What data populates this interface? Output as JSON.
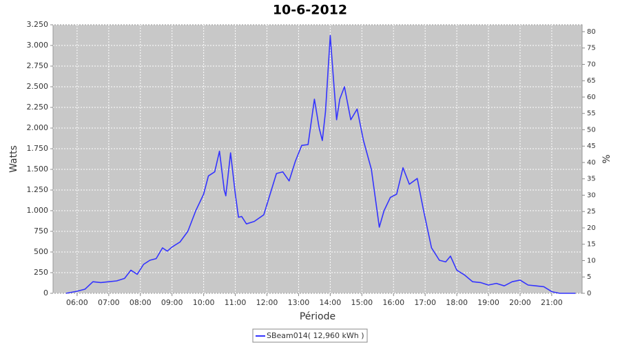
{
  "chart_data": {
    "type": "line",
    "title": "10-6-2012",
    "x_label": "Période",
    "y_label": "Watts",
    "y2_label": "%",
    "x": [
      5.65,
      6.0,
      6.25,
      6.5,
      6.75,
      7.0,
      7.25,
      7.5,
      7.7,
      7.9,
      8.1,
      8.3,
      8.5,
      8.7,
      8.85,
      9.0,
      9.25,
      9.5,
      9.75,
      10.0,
      10.15,
      10.35,
      10.5,
      10.65,
      10.7,
      10.85,
      11.0,
      11.1,
      11.2,
      11.35,
      11.6,
      11.9,
      12.1,
      12.3,
      12.5,
      12.7,
      12.9,
      13.1,
      13.3,
      13.5,
      13.65,
      13.75,
      13.85,
      14.0,
      14.1,
      14.2,
      14.3,
      14.45,
      14.65,
      14.85,
      15.05,
      15.3,
      15.55,
      15.7,
      15.9,
      16.1,
      16.3,
      16.5,
      16.75,
      16.95,
      17.2,
      17.45,
      17.65,
      17.8,
      18.0,
      18.25,
      18.5,
      18.75,
      19.0,
      19.25,
      19.5,
      19.75,
      20.0,
      20.25,
      20.5,
      20.75,
      21.0,
      21.25,
      21.75
    ],
    "series": [
      {
        "name": "SBeam014( 12,960 kWh )",
        "color": "#3333ff",
        "values": [
          0,
          25,
          50,
          140,
          130,
          140,
          150,
          180,
          280,
          230,
          350,
          400,
          420,
          550,
          510,
          560,
          620,
          750,
          1000,
          1200,
          1420,
          1470,
          1720,
          1250,
          1180,
          1700,
          1200,
          920,
          930,
          840,
          870,
          950,
          1200,
          1450,
          1470,
          1360,
          1600,
          1790,
          1800,
          2350,
          2000,
          1850,
          2200,
          3120,
          2600,
          2100,
          2350,
          2500,
          2100,
          2230,
          1850,
          1500,
          800,
          1000,
          1160,
          1200,
          1520,
          1320,
          1390,
          1000,
          550,
          400,
          380,
          450,
          280,
          220,
          140,
          130,
          100,
          120,
          90,
          140,
          160,
          100,
          90,
          80,
          20,
          0,
          0
        ]
      }
    ],
    "xlim": [
      5.24,
      21.96
    ],
    "xticks": [
      {
        "value": 6,
        "label": "06:00"
      },
      {
        "value": 7,
        "label": "07:00"
      },
      {
        "value": 8,
        "label": "08:00"
      },
      {
        "value": 9,
        "label": "09:00"
      },
      {
        "value": 10,
        "label": "10:00"
      },
      {
        "value": 11,
        "label": "11:00"
      },
      {
        "value": 12,
        "label": "12:00"
      },
      {
        "value": 13,
        "label": "13:00"
      },
      {
        "value": 14,
        "label": "14:00"
      },
      {
        "value": 15,
        "label": "15:00"
      },
      {
        "value": 16,
        "label": "16:00"
      },
      {
        "value": 17,
        "label": "17:00"
      },
      {
        "value": 18,
        "label": "18:00"
      },
      {
        "value": 19,
        "label": "19:00"
      },
      {
        "value": 20,
        "label": "20:00"
      },
      {
        "value": 21,
        "label": "21:00"
      }
    ],
    "ylim": [
      0,
      3250
    ],
    "yticks": [
      0,
      250,
      500,
      750,
      {
        "value": 1000,
        "label": "1.000"
      },
      {
        "value": 1250,
        "label": "1.250"
      },
      {
        "value": 1500,
        "label": "1.500"
      },
      {
        "value": 1750,
        "label": "1.750"
      },
      {
        "value": 2000,
        "label": "2.000"
      },
      {
        "value": 2250,
        "label": "2.250"
      },
      {
        "value": 2500,
        "label": "2.500"
      },
      {
        "value": 2750,
        "label": "2.750"
      },
      {
        "value": 3000,
        "label": "3.000"
      },
      {
        "value": 3250,
        "label": "3.250"
      }
    ],
    "y2lim": [
      0,
      82.1
    ],
    "y2ticks": [
      0,
      5,
      10,
      15,
      20,
      25,
      30,
      35,
      40,
      45,
      50,
      55,
      60,
      65,
      70,
      75,
      80
    ],
    "grid": true,
    "legend": "bottom"
  }
}
